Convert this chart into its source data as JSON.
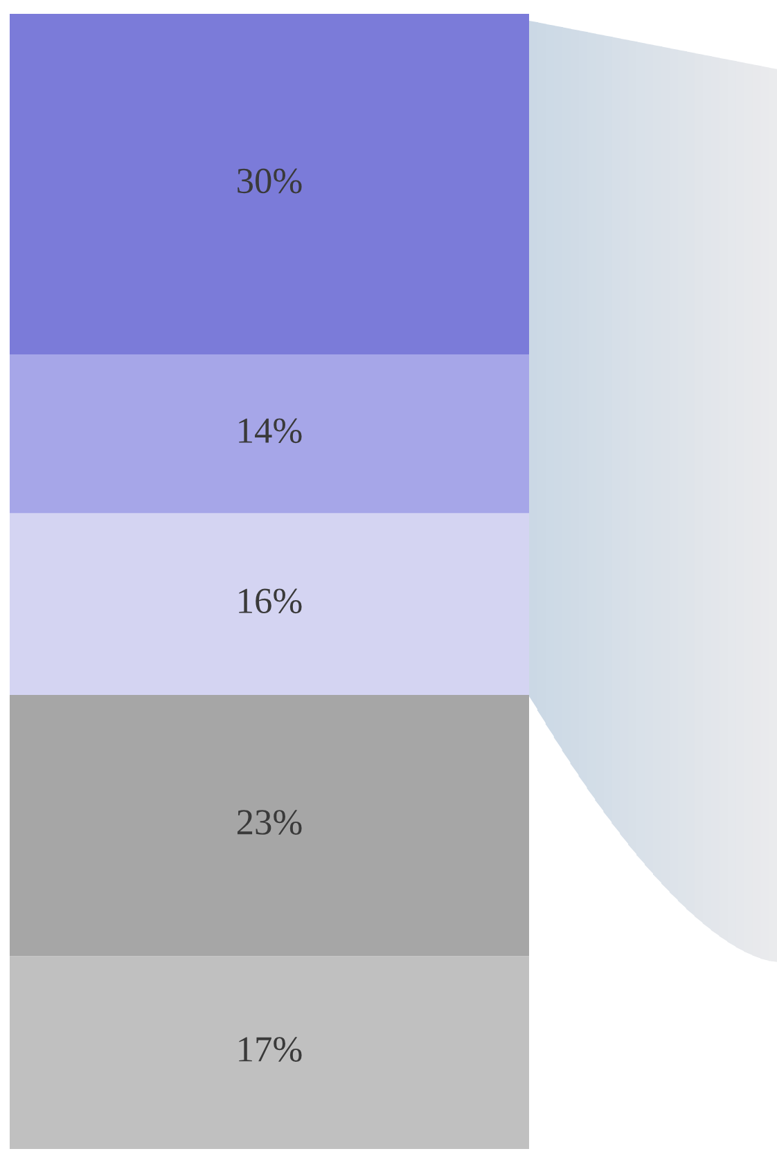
{
  "chart_data": {
    "type": "bar",
    "stacked": true,
    "categories": [
      null
    ],
    "legend": false,
    "grid": false,
    "tick_labels": false,
    "series": [
      {
        "color": "#c0c0c0",
        "values": [
          17
        ],
        "value_labels": [
          "17%"
        ]
      },
      {
        "color": "#a6a6a6",
        "values": [
          23
        ],
        "value_labels": [
          "23%"
        ]
      },
      {
        "color": "#d4d4f2",
        "values": [
          16
        ],
        "value_labels": [
          "16%"
        ]
      },
      {
        "color": "#a6a6e8",
        "values": [
          14
        ],
        "value_labels": [
          "14%"
        ]
      },
      {
        "color": "#7b7bd9",
        "values": [
          30
        ],
        "value_labels": [
          "30%"
        ]
      }
    ]
  }
}
